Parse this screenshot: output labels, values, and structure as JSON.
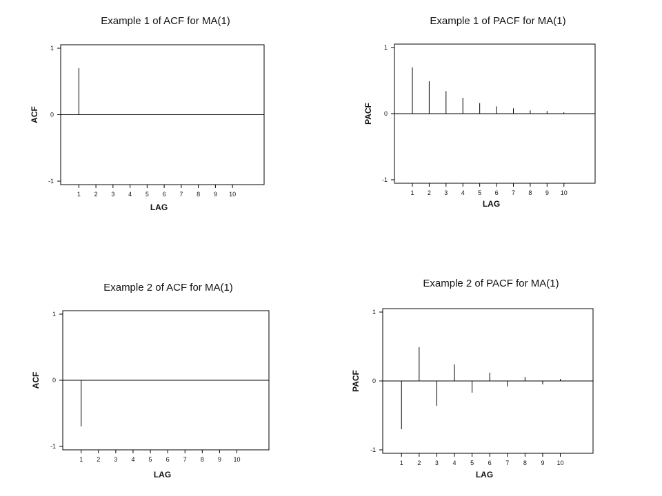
{
  "chart_data": [
    {
      "type": "bar",
      "title": "Example 1 of ACF for MA(1)",
      "xlabel": "LAG",
      "ylabel": "ACF",
      "x": [
        1,
        2,
        3,
        4,
        5,
        6,
        7,
        8,
        9,
        10
      ],
      "values": [
        0.7,
        0,
        0,
        0,
        0,
        0,
        0,
        0,
        0,
        0
      ],
      "ylim": [
        -1,
        1
      ],
      "yticks": [
        "1",
        "0",
        "-1"
      ],
      "xticks": [
        "1",
        "2",
        "3",
        "4",
        "5",
        "6",
        "7",
        "8",
        "9",
        "10"
      ],
      "grid": false
    },
    {
      "type": "bar",
      "title": "Example 1 of PACF for MA(1)",
      "xlabel": "LAG",
      "ylabel": "PACF",
      "x": [
        1,
        2,
        3,
        4,
        5,
        6,
        7,
        8,
        9,
        10
      ],
      "values": [
        0.7,
        0.49,
        0.34,
        0.24,
        0.16,
        0.11,
        0.08,
        0.05,
        0.04,
        0.02
      ],
      "ylim": [
        -1,
        1
      ],
      "yticks": [
        "1",
        "0",
        "-1"
      ],
      "xticks": [
        "1",
        "2",
        "3",
        "4",
        "5",
        "6",
        "7",
        "8",
        "9",
        "10"
      ],
      "grid": false
    },
    {
      "type": "bar",
      "title": "Example 2 of ACF for MA(1)",
      "xlabel": "LAG",
      "ylabel": "ACF",
      "x": [
        1,
        2,
        3,
        4,
        5,
        6,
        7,
        8,
        9,
        10
      ],
      "values": [
        -0.7,
        0,
        0,
        0,
        0,
        0,
        0,
        0,
        0,
        0
      ],
      "ylim": [
        -1,
        1
      ],
      "yticks": [
        "1",
        "0",
        "-1"
      ],
      "xticks": [
        "1",
        "2",
        "3",
        "4",
        "5",
        "6",
        "7",
        "8",
        "9",
        "10"
      ],
      "grid": false
    },
    {
      "type": "bar",
      "title": "Example 2 of PACF for MA(1)",
      "xlabel": "LAG",
      "ylabel": "PACF",
      "x": [
        1,
        2,
        3,
        4,
        5,
        6,
        7,
        8,
        9,
        10
      ],
      "values": [
        -0.7,
        0.49,
        -0.36,
        0.24,
        -0.17,
        0.12,
        -0.08,
        0.06,
        -0.05,
        0.03
      ],
      "ylim": [
        -1,
        1
      ],
      "yticks": [
        "1",
        "0",
        "-1"
      ],
      "xticks": [
        "1",
        "2",
        "3",
        "4",
        "5",
        "6",
        "7",
        "8",
        "9",
        "10"
      ],
      "grid": false
    }
  ]
}
